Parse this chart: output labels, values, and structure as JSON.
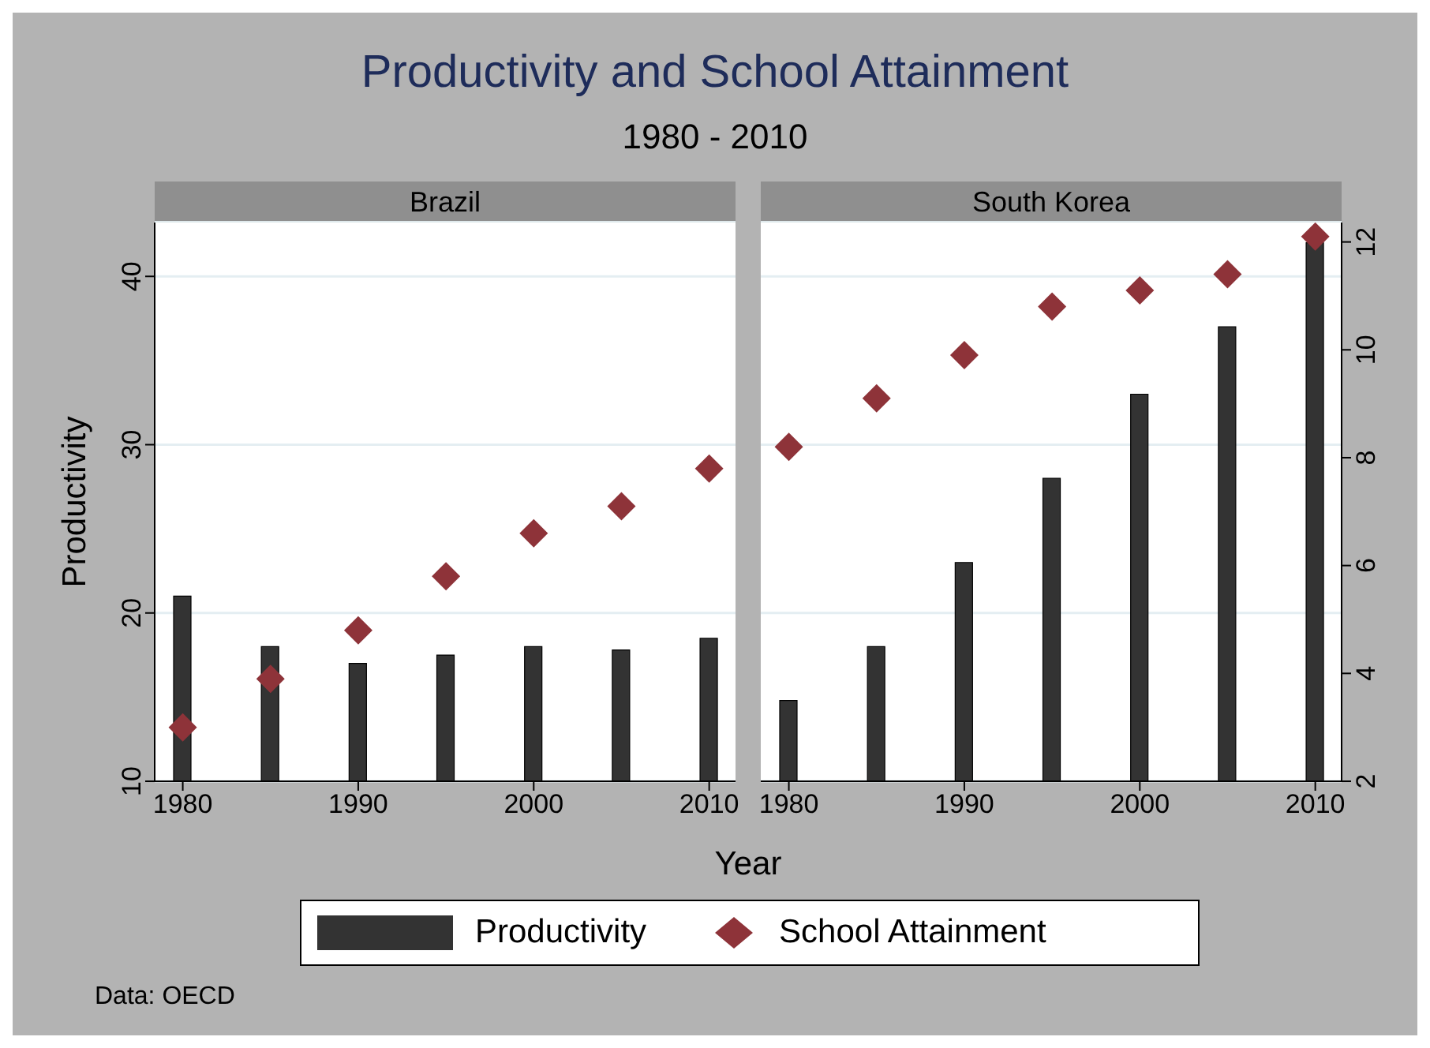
{
  "chart_data": [
    {
      "type": "bar",
      "title": "Brazil",
      "annotations": [
        "Productivity and School Attainment",
        "1980 - 2010",
        "Data: OECD"
      ],
      "xlabel": "Year",
      "ylabel": "Productivity",
      "x": [
        1980,
        1985,
        1990,
        1995,
        2000,
        2005,
        2010
      ],
      "series": [
        {
          "name": "Productivity",
          "color": "#333333",
          "values": [
            21.0,
            18.0,
            17.0,
            17.5,
            18.0,
            17.8,
            18.5
          ]
        },
        {
          "name": "School Attainment",
          "type": "scatter",
          "axis": "y2",
          "color": "#8e3339",
          "values": [
            3.0,
            3.9,
            4.8,
            5.8,
            6.6,
            7.1,
            7.8
          ]
        }
      ],
      "xlim": [
        1978.4,
        2011.5
      ],
      "xticks": [
        1980,
        1990,
        2000,
        2010
      ],
      "ylim": [
        10,
        43.2
      ],
      "yticks": [
        10,
        20,
        30,
        40
      ],
      "y2lim": [
        2,
        12.36
      ],
      "grid": "y",
      "marker": "diamond",
      "legend": "bottom"
    },
    {
      "type": "bar",
      "title": "South Korea",
      "x": [
        1980,
        1985,
        1990,
        1995,
        2000,
        2005,
        2010
      ],
      "series": [
        {
          "color": "#333333",
          "values": [
            14.8,
            18.0,
            23.0,
            28.0,
            33.0,
            37.0,
            42.0
          ]
        },
        {
          "type": "scatter",
          "axis": "y2",
          "color": "#8e3339",
          "values": [
            8.2,
            9.1,
            9.9,
            10.8,
            11.1,
            11.4,
            12.1
          ]
        }
      ],
      "xlim": [
        1978.4,
        2011.5
      ],
      "xticks": [
        1980,
        1990,
        2000,
        2010
      ],
      "ylim": [
        10,
        43.2
      ],
      "y2lim": [
        2,
        12.36
      ],
      "y2ticks": [
        2,
        4,
        6,
        8,
        10,
        12
      ],
      "grid": "y",
      "marker": "diamond"
    }
  ]
}
